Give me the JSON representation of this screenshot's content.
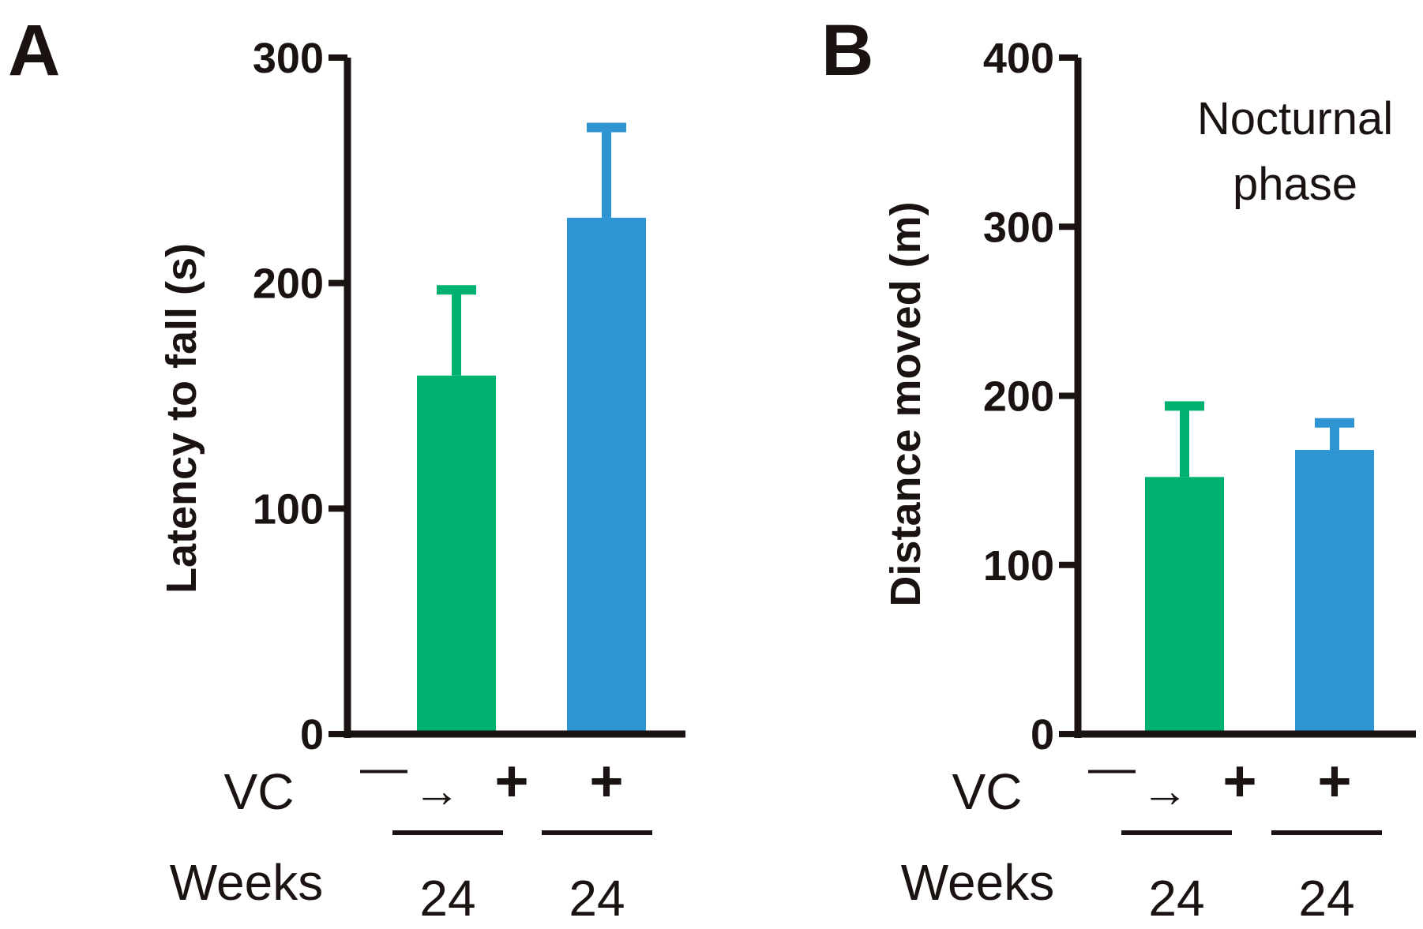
{
  "chart_data": [
    {
      "type": "bar",
      "panel": "A",
      "categories": [
        "−→+",
        "+"
      ],
      "values": [
        159,
        229
      ],
      "errors": [
        38,
        40
      ],
      "colors": [
        "#00b26f",
        "#2e94d2"
      ],
      "ylabel": "Latency to fall (s)",
      "xlabel": "",
      "ylim": [
        0,
        300
      ],
      "yticks": [
        "0",
        "100",
        "200",
        "300"
      ],
      "annotation": "",
      "conditions": {
        "vc_label": "VC",
        "weeks_label": "Weeks",
        "vc_values": [
          {
            "minus": "—",
            "arrow": "→",
            "plus": "+"
          },
          {
            "minus": "",
            "arrow": "",
            "plus": "+"
          }
        ],
        "weeks_values": [
          "24",
          "24"
        ]
      }
    },
    {
      "type": "bar",
      "panel": "B",
      "categories": [
        "−→+",
        "+"
      ],
      "values": [
        152,
        168
      ],
      "errors": [
        42,
        16
      ],
      "colors": [
        "#00b26f",
        "#2e94d2"
      ],
      "ylabel": "Distance moved (m)",
      "xlabel": "",
      "ylim": [
        0,
        400
      ],
      "yticks": [
        "0",
        "100",
        "200",
        "300",
        "400"
      ],
      "annotation": "Nocturnal phase",
      "annotation_lines": [
        "Nocturnal",
        "phase"
      ],
      "conditions": {
        "vc_label": "VC",
        "weeks_label": "Weeks",
        "vc_values": [
          {
            "minus": "—",
            "arrow": "→",
            "plus": "+"
          },
          {
            "minus": "",
            "arrow": "",
            "plus": "+"
          }
        ],
        "weeks_values": [
          "24",
          "24"
        ]
      }
    }
  ],
  "colors": {
    "axis": "#1a1311",
    "green": "#00b26f",
    "blue": "#2e94d2"
  }
}
